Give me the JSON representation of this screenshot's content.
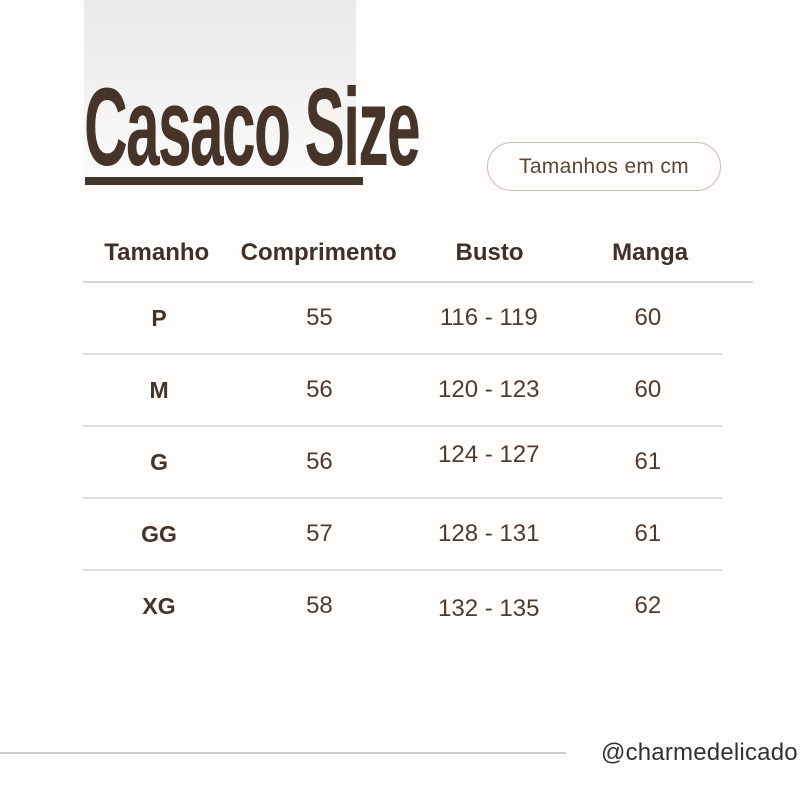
{
  "title": "Casaco Size",
  "badge": {
    "label": "Tamanhos em cm"
  },
  "table": {
    "headers": [
      "Tamanho",
      "Comprimento",
      "Busto",
      "Manga"
    ],
    "rows": [
      {
        "size": "P",
        "comprimento": "55",
        "busto": "116 - 119",
        "manga": "60"
      },
      {
        "size": "M",
        "comprimento": "56",
        "busto": "120 - 123",
        "manga": "60"
      },
      {
        "size": "G",
        "comprimento": "56",
        "busto": "124 - 127",
        "manga": "61"
      },
      {
        "size": "GG",
        "comprimento": "57",
        "busto": "128 - 131",
        "manga": "61"
      },
      {
        "size": "XG",
        "comprimento": "58",
        "busto": "132 - 135",
        "manga": "62"
      }
    ]
  },
  "footer": {
    "handle": "@charmedelicado"
  },
  "colors": {
    "accent_brown": "#46332a",
    "header_text": "#41302a",
    "value_text": "#4d3c32",
    "badge_border": "#c7bfb9",
    "badge_text": "#5c4638",
    "divider": "#dedede",
    "footer_text": "#323232",
    "background": "#fefdfb"
  }
}
